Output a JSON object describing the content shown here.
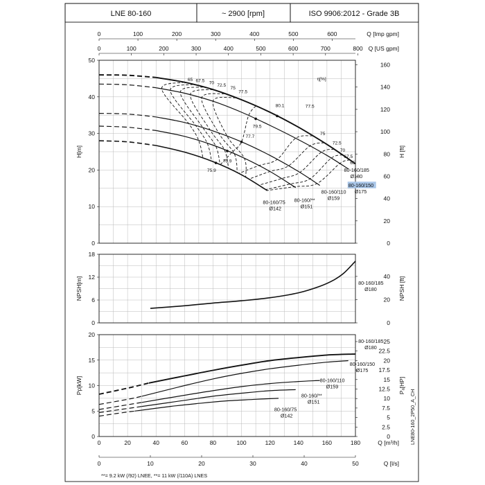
{
  "header": {
    "model": "LNE 80-160",
    "speed": "~ 2900 [rpm]",
    "standard": "ISO 9906:2012 - Grade 3B"
  },
  "footnote": "**= 9.2 kW (/92) LNEE, **= 11 kW (/110A) LNES",
  "side_code": "LNE80-160_2P50_A_CH",
  "colors": {
    "line": "#111111",
    "grid": "#b9b9b9",
    "highlight": "#a9c6e8"
  },
  "chart_data": [
    {
      "id": "head",
      "type": "line",
      "ylabel": "H[m]",
      "y2label": "H [ft]",
      "x2label_top": "Q [Imp gpm]",
      "x3label_top": "Q [US gpm]",
      "eff_label": "η[%]",
      "xlim": [
        0,
        180
      ],
      "ylim": [
        0,
        50
      ],
      "y2lim": [
        0,
        164.04
      ],
      "yticks": [
        0,
        10,
        20,
        30,
        40,
        50
      ],
      "y2ticks": [
        0,
        20,
        40,
        60,
        80,
        100,
        120,
        140,
        160
      ],
      "imp_gpm_ticks": [
        0,
        100,
        200,
        300,
        400,
        500,
        600
      ],
      "us_gpm_ticks": [
        0,
        100,
        200,
        300,
        400,
        500,
        600,
        700,
        800
      ],
      "series": [
        {
          "name": "80-160/185",
          "dia": "Ø180",
          "width": 1.9,
          "dashed_to": 40,
          "x": [
            0,
            20,
            40,
            60,
            80,
            100,
            120,
            140,
            160,
            170,
            180
          ],
          "y": [
            46,
            45.9,
            45.3,
            44,
            42,
            39.2,
            35.8,
            31.7,
            27,
            24.4,
            21.7
          ]
        },
        {
          "name": "80-160/150",
          "dia": "Ø175",
          "width": 1.2,
          "highlight": true,
          "dashed_to": 40,
          "x": [
            0,
            20,
            40,
            60,
            80,
            100,
            120,
            140,
            160,
            175
          ],
          "y": [
            43.5,
            43.3,
            42.5,
            41,
            38.8,
            35.8,
            32.2,
            28.3,
            24,
            20.3
          ]
        },
        {
          "name": "80-160/110",
          "dia": "Ø159",
          "width": 1.2,
          "dashed_to": 30,
          "x": [
            0,
            20,
            40,
            60,
            80,
            100,
            120,
            140,
            155
          ],
          "y": [
            35.5,
            35.3,
            34.5,
            33,
            30.7,
            27.7,
            24,
            19.6,
            15.8
          ]
        },
        {
          "name": "80-160/**",
          "dia": "Ø151",
          "width": 1.2,
          "dashed_to": 30,
          "x": [
            0,
            20,
            40,
            60,
            80,
            100,
            120,
            138
          ],
          "y": [
            32,
            31.7,
            30.8,
            29.2,
            26.8,
            23.6,
            19.6,
            15.2
          ]
        },
        {
          "name": "80-160/75",
          "dia": "Ø142",
          "width": 1.6,
          "dashed_to": 25,
          "x": [
            0,
            20,
            40,
            60,
            80,
            100,
            118
          ],
          "y": [
            28,
            27.7,
            26.7,
            24.9,
            22.3,
            18.7,
            14.4
          ]
        }
      ],
      "efficiency_labels": [
        {
          "text": "65",
          "x": 64,
          "y": 44.3
        },
        {
          "text": "67.5",
          "x": 71,
          "y": 44.0
        },
        {
          "text": "70",
          "x": 79,
          "y": 43.5
        },
        {
          "text": "72.5",
          "x": 86,
          "y": 42.8
        },
        {
          "text": "75",
          "x": 94,
          "y": 42.0
        },
        {
          "text": "77.5",
          "x": 101,
          "y": 41.0
        },
        {
          "text": "80.1",
          "x": 127,
          "y": 37.2
        },
        {
          "text": "77.5",
          "x": 148,
          "y": 37.0
        },
        {
          "text": "79.5",
          "x": 111,
          "y": 31.5
        },
        {
          "text": "77.7",
          "x": 106,
          "y": 28.8
        },
        {
          "text": "75",
          "x": 157,
          "y": 29.5
        },
        {
          "text": "72.5",
          "x": 167,
          "y": 27.0
        },
        {
          "text": "70",
          "x": 171,
          "y": 25.0
        },
        {
          "text": "67.5",
          "x": 175,
          "y": 23.3
        },
        {
          "text": "65",
          "x": 178,
          "y": 21.6
        },
        {
          "text": "76.9",
          "x": 90,
          "y": 22.1
        },
        {
          "text": "75.9",
          "x": 79,
          "y": 19.5
        }
      ],
      "curve_labels": [
        {
          "name": "80-160/185",
          "dia": "Ø180",
          "x": 172,
          "y": 19.5
        },
        {
          "name": "80-160/150",
          "dia": "Ø175",
          "x": 175,
          "y": 15.3,
          "highlight": true
        },
        {
          "name": "80-160/110",
          "dia": "Ø159",
          "x": 156,
          "y": 13.5
        },
        {
          "name": "80-160/**",
          "dia": "Ø151",
          "x": 137,
          "y": 11.3
        },
        {
          "name": "80-160/75",
          "dia": "Ø142",
          "x": 115,
          "y": 10.7
        }
      ]
    },
    {
      "id": "npsh",
      "type": "line",
      "ylabel": "NPSH[m]",
      "y2label": "NPSH [ft]",
      "xlim": [
        0,
        180
      ],
      "ylim": [
        0,
        18
      ],
      "y2lim": [
        0,
        59.06
      ],
      "yticks": [
        0,
        6,
        12,
        18
      ],
      "y2ticks": [
        0,
        20,
        40
      ],
      "series": [
        {
          "name": "80-160/185",
          "dia": "Ø180",
          "x": [
            36,
            60,
            80,
            100,
            120,
            140,
            155,
            165,
            172,
            180
          ],
          "y": [
            3.8,
            4.5,
            5.2,
            5.8,
            6.6,
            7.9,
            9.6,
            11.3,
            13.1,
            16.2
          ]
        }
      ],
      "curve_labels": [
        {
          "name": "80-160/185",
          "dia": "Ø180",
          "x": 182,
          "y": 10
        }
      ]
    },
    {
      "id": "power",
      "type": "line",
      "ylabel": "Pp[kW]",
      "y2label": "Pₐ[HP]",
      "xlabel": "Q [m³/h]",
      "x2label": "Q [l/s]",
      "xlim": [
        0,
        180
      ],
      "ylim": [
        0,
        20
      ],
      "y2lim": [
        0,
        26.82
      ],
      "xticks": [
        0,
        20,
        40,
        60,
        80,
        100,
        120,
        140,
        160,
        180
      ],
      "x2ticks": [
        0,
        10,
        20,
        30,
        40,
        50
      ],
      "yticks": [
        0,
        5,
        10,
        15,
        20
      ],
      "y2ticks": [
        0,
        2.5,
        5,
        7.5,
        10,
        12.5,
        15,
        17.5,
        20,
        22.5,
        25
      ],
      "series": [
        {
          "name": "80-160/185",
          "dia": "Ø180",
          "width": 1.9,
          "dashed_to": 35,
          "x": [
            0,
            20,
            35,
            60,
            80,
            100,
            120,
            140,
            160,
            180
          ],
          "y": [
            8.3,
            9.5,
            10.5,
            11.9,
            13.0,
            14.0,
            14.9,
            15.5,
            16.0,
            16.2
          ]
        },
        {
          "name": "80-160/150",
          "dia": "Ø175",
          "width": 1.2,
          "dashed_to": 30,
          "x": [
            0,
            20,
            30,
            60,
            80,
            100,
            120,
            140,
            160,
            175
          ],
          "y": [
            6.3,
            7.3,
            7.9,
            10.0,
            11.3,
            12.4,
            13.3,
            14.0,
            14.6,
            14.9
          ]
        },
        {
          "name": "80-160/110",
          "dia": "Ø159",
          "width": 1.2,
          "dashed_to": 30,
          "x": [
            0,
            15,
            30,
            60,
            80,
            100,
            120,
            140,
            155
          ],
          "y": [
            5.3,
            6.0,
            6.7,
            8.1,
            9.0,
            9.8,
            10.4,
            10.8,
            11.0
          ]
        },
        {
          "name": "80-160/**",
          "dia": "Ø151",
          "width": 1.2,
          "dashed_to": 30,
          "x": [
            0,
            15,
            30,
            60,
            80,
            100,
            120,
            138
          ],
          "y": [
            4.7,
            5.3,
            5.9,
            7.1,
            7.9,
            8.5,
            9.0,
            9.2
          ]
        },
        {
          "name": "80-160/75",
          "dia": "Ø142",
          "width": 1.2,
          "dashed_to": 25,
          "x": [
            0,
            12,
            25,
            50,
            70,
            90,
            110,
            126
          ],
          "y": [
            4.0,
            4.5,
            5.0,
            5.9,
            6.5,
            7.0,
            7.3,
            7.5
          ]
        }
      ],
      "curve_labels": [
        {
          "name": "80-160/185",
          "dia": "Ø180",
          "x": 182,
          "y": 18.4
        },
        {
          "name": "80-160/150",
          "dia": "Ø175",
          "x": 176,
          "y": 13.9
        },
        {
          "name": "80-160/110",
          "dia": "Ø159",
          "x": 155,
          "y": 10.7
        },
        {
          "name": "80-160/**",
          "dia": "Ø151",
          "x": 142,
          "y": 7.7
        },
        {
          "name": "80-160/75",
          "dia": "Ø142",
          "x": 123,
          "y": 5.0
        }
      ]
    }
  ]
}
